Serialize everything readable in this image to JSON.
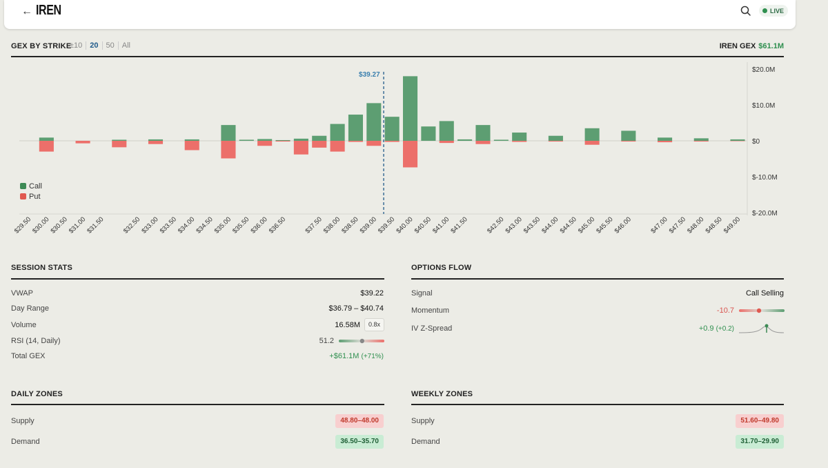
{
  "header": {
    "brand": "IREN",
    "live_label": "LIVE"
  },
  "gex": {
    "title": "GEX BY STRIKE",
    "ranges": [
      "±10",
      "20",
      "50",
      "All"
    ],
    "active_range": "20",
    "total_label": "IREN GEX",
    "total_value": "$61.1M"
  },
  "legend": {
    "call": "Call",
    "put": "Put"
  },
  "colors": {
    "call": "#5d9e72",
    "put": "#ec6f6a",
    "accent": "#1f5a8a",
    "positive": "#2f8f4f",
    "negative": "#d9534f"
  },
  "chart_data": {
    "type": "bar",
    "y_tick_labels": [
      "$20.0M",
      "$10.0M",
      "$0",
      "$-10.0M",
      "$-20.0M"
    ],
    "ylim": [
      -20,
      20
    ],
    "y_unit": "$M",
    "spot_label": "$39.27",
    "spot": 39.27,
    "strikes": [
      29.5,
      30,
      30.5,
      31,
      31.5,
      32,
      32.5,
      33,
      33.5,
      34,
      34.5,
      35,
      35.5,
      36,
      36.5,
      37,
      37.5,
      38,
      38.5,
      39,
      39.5,
      40,
      40.5,
      41,
      41.5,
      42,
      42.5,
      43,
      43.5,
      44,
      44.5,
      45,
      45.5,
      46,
      46.5,
      47,
      47.5,
      48,
      48.5,
      49
    ],
    "tick_labels": [
      "$29.50",
      "$30.00",
      "$30.50",
      "$31.00",
      "$31.50",
      "$32.50",
      "$33.00",
      "$33.50",
      "$34.00",
      "$34.50",
      "$35.00",
      "$35.50",
      "$36.00",
      "$36.50",
      "$37.50",
      "$38.00",
      "$38.50",
      "$39.00",
      "$39.50",
      "$40.00",
      "$40.50",
      "$41.00",
      "$41.50",
      "$42.50",
      "$43.00",
      "$43.50",
      "$44.00",
      "$44.50",
      "$45.00",
      "$45.50",
      "$46.00",
      "$47.00",
      "$47.50",
      "$48.00",
      "$48.50",
      "$49.00"
    ],
    "series": [
      {
        "name": "Call",
        "values": [
          0,
          0.9,
          0,
          0,
          0,
          0.3,
          0,
          0.4,
          0,
          0.4,
          0,
          4.4,
          0.3,
          0.5,
          0.2,
          0.6,
          1.4,
          4.7,
          7.3,
          10.5,
          6.7,
          18,
          4.0,
          5.5,
          0.4,
          4.4,
          0.3,
          2.3,
          0,
          1.4,
          0,
          3.5,
          0,
          2.8,
          0,
          0.9,
          0,
          0.7,
          0,
          0.4
        ]
      },
      {
        "name": "Put",
        "values": [
          0,
          -3.0,
          0,
          -0.7,
          0,
          -1.8,
          0,
          -0.9,
          0,
          -2.6,
          0,
          -4.9,
          0,
          -1.4,
          -0.2,
          -3.8,
          -1.9,
          -3.0,
          -0.3,
          -1.4,
          -0.3,
          -7.4,
          0,
          -0.6,
          0,
          -0.9,
          0,
          -0.3,
          0,
          -0.2,
          0,
          -1.1,
          0,
          -0.2,
          0,
          -0.4,
          0,
          -0.2,
          0,
          -0.1
        ]
      }
    ]
  },
  "session": {
    "title": "SESSION STATS",
    "vwap_label": "VWAP",
    "vwap": "$39.22",
    "range_label": "Day Range",
    "range": "$36.79 – $40.74",
    "volume_label": "Volume",
    "volume": "16.58M",
    "volume_ratio": "0.8x",
    "rsi_label": "RSI (14, Daily)",
    "rsi": "51.2",
    "rsi_value": 51.2,
    "total_gex_label": "Total GEX",
    "total_gex": "+$61.1M",
    "total_gex_pct": "(+71%)"
  },
  "flow": {
    "title": "OPTIONS FLOW",
    "signal_label": "Signal",
    "signal": "Call Selling",
    "momentum_label": "Momentum",
    "momentum": "-10.7",
    "iv_label": "IV Z-Spread",
    "iv": "+0.9",
    "iv_change": "(+0.2)"
  },
  "daily": {
    "title": "DAILY ZONES",
    "supply_label": "Supply",
    "supply": "48.80–48.00",
    "demand_label": "Demand",
    "demand": "36.50–35.70"
  },
  "weekly": {
    "title": "WEEKLY ZONES",
    "supply_label": "Supply",
    "supply": "51.60–49.80",
    "demand_label": "Demand",
    "demand": "31.70–29.90"
  }
}
